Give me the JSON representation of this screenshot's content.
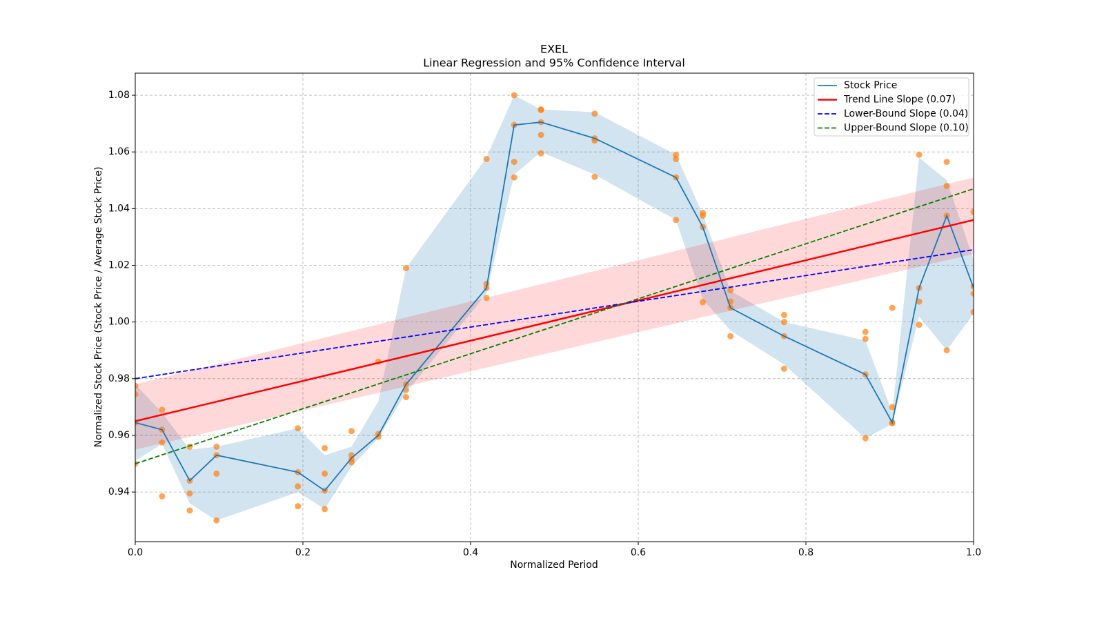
{
  "chart_data": {
    "type": "line",
    "title": "EXEL",
    "subtitle": "Linear Regression and 95% Confidence Interval",
    "x_label": "Normalized Period",
    "y_label": "Normalized Stock Price (Stock Price / Average Stock Price)",
    "xlim": [
      0,
      1
    ],
    "ylim": [
      0.9225,
      1.0878
    ],
    "xticks": [
      {
        "value": 0,
        "label": "0.0"
      },
      0.2,
      0.4,
      0.6,
      0.8,
      {
        "value": 1,
        "label": "1.0"
      }
    ],
    "yticks": [
      0.94,
      0.96,
      0.98,
      {
        "value": 1,
        "label": "1.00"
      },
      1.02,
      1.04,
      1.06,
      1.08
    ],
    "grid": true,
    "legend": "upper right",
    "series": [
      {
        "name": "Stock Price",
        "color": "#1f77b4",
        "style": "solid",
        "x": [
          0,
          0.032,
          0.065,
          0.097,
          0.194,
          0.226,
          0.258,
          0.29,
          0.323,
          0.419,
          0.452,
          0.484,
          0.548,
          0.645,
          0.677,
          0.71,
          0.774,
          0.871,
          0.903,
          0.935,
          0.968,
          1
        ],
        "values": [
          0.9645,
          0.962,
          0.944,
          0.953,
          0.947,
          0.9405,
          0.952,
          0.96,
          0.978,
          1.012,
          1.0695,
          1.0705,
          1.0648,
          1.051,
          1.0335,
          1.005,
          0.995,
          0.9815,
          0.9645,
          1.012,
          1.0375,
          1.012
        ]
      },
      {
        "name": "Trend Line Slope (0.07)",
        "color": "#ff0000",
        "style": "solid",
        "x": [
          0,
          1
        ],
        "values": [
          0.965,
          1.036
        ]
      },
      {
        "name": "Lower-Bound Slope (0.04)",
        "color": "#0000ff",
        "style": "dashed",
        "x": [
          0,
          1
        ],
        "values": [
          0.98,
          1.0255
        ]
      },
      {
        "name": "Upper-Bound Slope (0.10)",
        "color": "#008000",
        "style": "dashed",
        "x": [
          0,
          1
        ],
        "values": [
          0.95,
          1.047
        ]
      }
    ],
    "bands": [
      {
        "color": "#1f77b4",
        "x": [
          0,
          0.032,
          0.065,
          0.097,
          0.194,
          0.226,
          0.258,
          0.29,
          0.323,
          0.419,
          0.452,
          0.484,
          0.548,
          0.645,
          0.677,
          0.71,
          0.774,
          0.871,
          0.903,
          0.935,
          0.968,
          1
        ],
        "lower": [
          0.951,
          0.957,
          0.936,
          0.93,
          0.94,
          0.934,
          0.949,
          0.959,
          0.975,
          1.01,
          1.052,
          1.06,
          1.052,
          1.036,
          1.008,
          0.997,
          0.985,
          0.959,
          0.964,
          1.002,
          0.99,
          1.003
        ],
        "upper": [
          0.978,
          0.968,
          0.955,
          0.956,
          0.9625,
          0.953,
          0.956,
          0.972,
          1.019,
          1.058,
          1.08,
          1.075,
          1.074,
          1.059,
          1.038,
          1.011,
          1.0,
          0.9935,
          0.968,
          1.058,
          1.05,
          1.022
        ]
      },
      {
        "color": "#ff0000",
        "x": [
          0,
          1
        ],
        "lower": [
          0.955,
          1.024
        ],
        "upper": [
          0.978,
          1.051
        ]
      }
    ],
    "points": {
      "color": "#ff7f0e",
      "x": [
        0,
        0,
        0,
        0,
        0.032,
        0.032,
        0.032,
        0.032,
        0.065,
        0.065,
        0.065,
        0.065,
        0.097,
        0.097,
        0.097,
        0.097,
        0.194,
        0.194,
        0.194,
        0.194,
        0.226,
        0.226,
        0.226,
        0.226,
        0.258,
        0.258,
        0.258,
        0.258,
        0.29,
        0.29,
        0.29,
        0.323,
        0.323,
        0.323,
        0.323,
        0.419,
        0.419,
        0.419,
        0.419,
        0.452,
        0.452,
        0.452,
        0.452,
        0.484,
        0.484,
        0.484,
        0.484,
        0.484,
        0.548,
        0.548,
        0.548,
        0.548,
        0.645,
        0.645,
        0.645,
        0.645,
        0.677,
        0.677,
        0.677,
        0.677,
        0.71,
        0.71,
        0.71,
        0.71,
        0.774,
        0.774,
        0.774,
        0.774,
        0.871,
        0.871,
        0.871,
        0.871,
        0.903,
        0.903,
        0.903,
        0.903,
        0.935,
        0.935,
        0.935,
        0.935,
        0.968,
        0.968,
        0.968,
        0.968,
        1,
        1,
        1,
        1
      ],
      "values": [
        0.9775,
        0.9745,
        0.95,
        0.9645,
        0.969,
        0.962,
        0.9575,
        0.9385,
        0.956,
        0.944,
        0.9395,
        0.9335,
        0.956,
        0.953,
        0.9465,
        0.93,
        0.9625,
        0.947,
        0.942,
        0.935,
        0.9555,
        0.9465,
        0.9405,
        0.934,
        0.9615,
        0.953,
        0.9515,
        0.9505,
        0.986,
        0.9605,
        0.9595,
        1.019,
        0.978,
        0.976,
        0.9735,
        1.0575,
        1.0135,
        1.012,
        1.0085,
        1.08,
        1.0695,
        1.0565,
        1.051,
        1.075,
        1.0748,
        1.0705,
        1.066,
        1.0595,
        1.0735,
        1.0648,
        1.064,
        1.0512,
        1.059,
        1.0575,
        1.051,
        1.036,
        1.0385,
        1.0375,
        1.0335,
        1.007,
        1.0112,
        1.0072,
        1.005,
        0.995,
        1.0025,
        1.0,
        0.995,
        0.9835,
        0.9965,
        0.994,
        0.9815,
        0.959,
        1.005,
        0.97,
        0.9645,
        0.9643,
        1.059,
        1.012,
        1.0072,
        0.999,
        1.0565,
        1.048,
        1.0375,
        0.99,
        1.0388,
        1.0125,
        1.01,
        1.0035
      ]
    }
  }
}
